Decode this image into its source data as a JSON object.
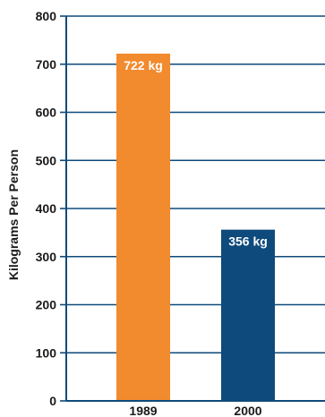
{
  "chart_data": {
    "type": "bar",
    "categories": [
      "1989",
      "2000"
    ],
    "values": [
      722,
      356
    ],
    "data_labels": [
      "722 kg",
      "356 kg"
    ],
    "bar_colors": [
      "#f28a2e",
      "#0e4a7b"
    ],
    "axis_color": "#0e4a7b",
    "title": "",
    "xlabel": "",
    "ylabel": "Kilograms Per Person",
    "ylim": [
      0,
      800
    ],
    "yticks": [
      0,
      100,
      200,
      300,
      400,
      500,
      600,
      700,
      800
    ],
    "grid": true,
    "legend": "none"
  }
}
